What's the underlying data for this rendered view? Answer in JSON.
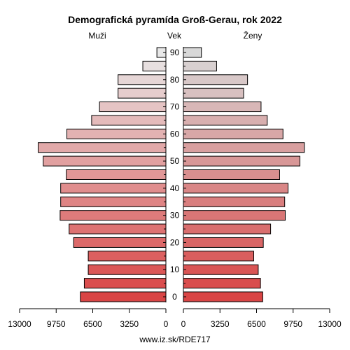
{
  "chart_data": {
    "type": "bar",
    "title": "Demografická pyramída Groß-Gerau, rok 2022",
    "left_label": "Muži",
    "center_label": "Vek",
    "right_label": "Ženy",
    "footer": "www.iz.sk/RDE717",
    "age_ticks": [
      "0",
      "10",
      "20",
      "30",
      "40",
      "50",
      "60",
      "70",
      "80",
      "90"
    ],
    "x_ticks_left": [
      "13000",
      "9750",
      "6500",
      "3250",
      "0"
    ],
    "x_ticks_right": [
      "0",
      "3250",
      "6500",
      "9750",
      "13000"
    ],
    "xlim": [
      0,
      13000
    ],
    "age_groups": [
      "0-4",
      "5-9",
      "10-14",
      "15-19",
      "20-24",
      "25-29",
      "30-34",
      "35-39",
      "40-44",
      "45-49",
      "50-54",
      "55-59",
      "60-64",
      "65-69",
      "70-74",
      "75-79",
      "80-84",
      "85-89",
      "90+"
    ],
    "series": [
      {
        "name": "Muži",
        "values": [
          7600,
          7250,
          6900,
          6900,
          8200,
          8600,
          9400,
          9350,
          9350,
          8850,
          10900,
          11350,
          8800,
          6600,
          5900,
          4250,
          4250,
          2050,
          800
        ]
      },
      {
        "name": "Ženy",
        "values": [
          7050,
          6850,
          6650,
          6250,
          7100,
          7750,
          9050,
          9000,
          9300,
          8550,
          10350,
          10750,
          8850,
          7450,
          6900,
          5350,
          5700,
          2950,
          1600
        ]
      }
    ],
    "colors": {
      "men_bottom": "#d94545",
      "men_top": "#e8e8e8",
      "women_bottom": "#d94545",
      "women_top": "#d8d8d8"
    }
  }
}
